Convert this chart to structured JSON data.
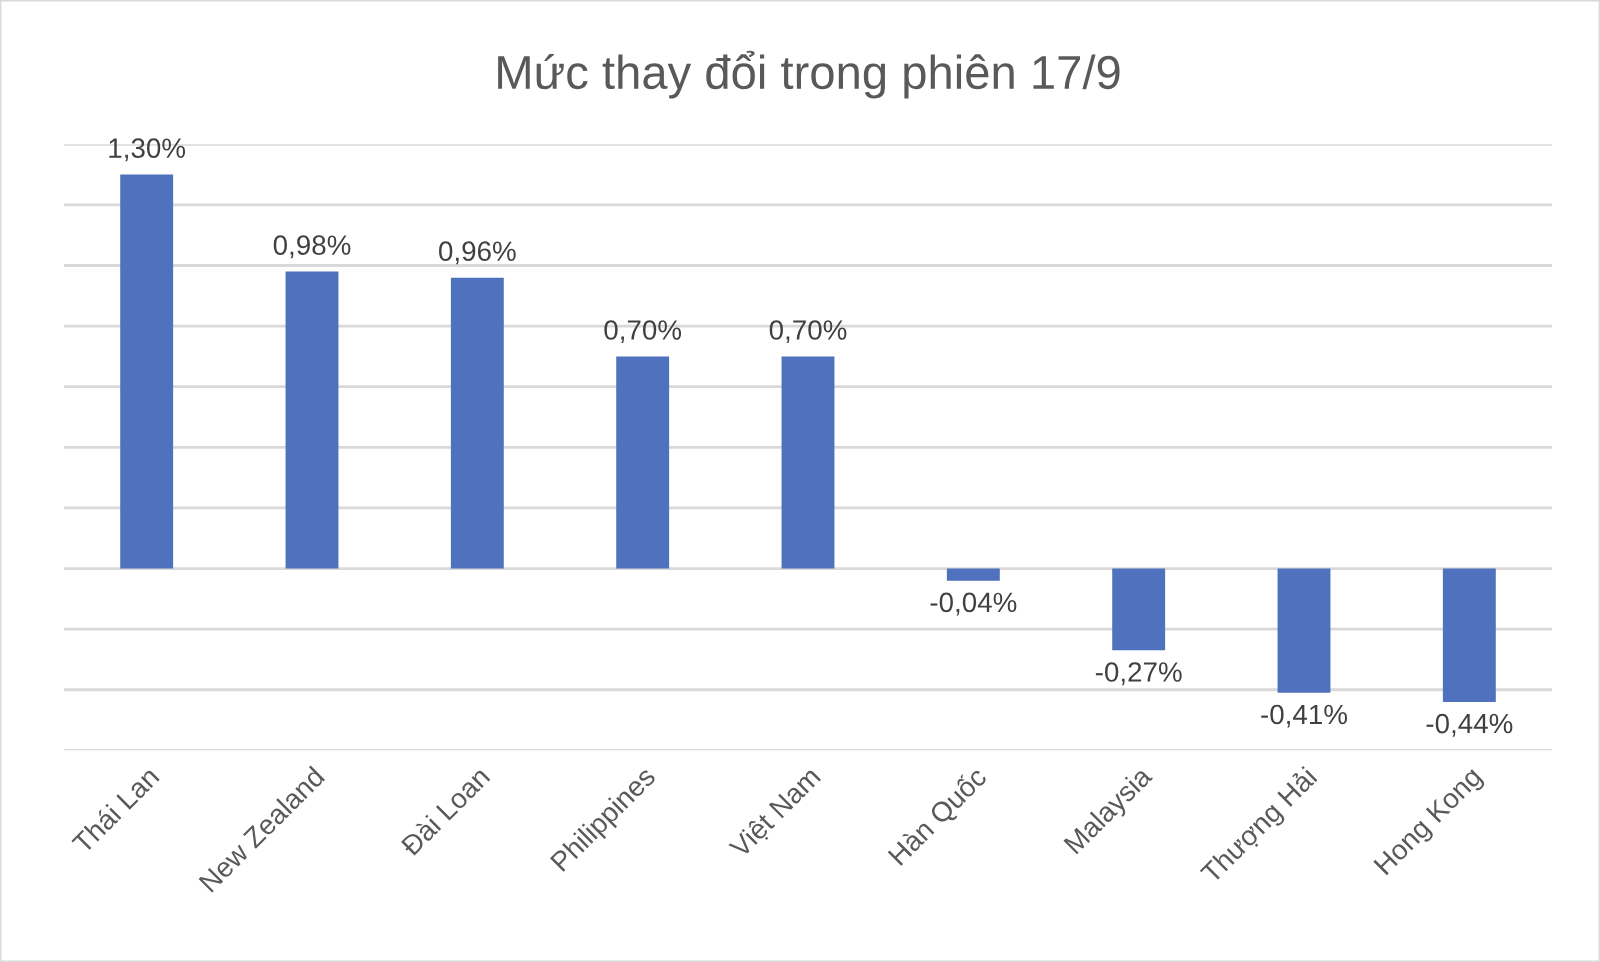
{
  "chart_data": {
    "type": "bar",
    "title": "Mức thay đổi trong phiên 17/9",
    "categories": [
      "Thái Lan",
      "New Zealand",
      "Đài Loan",
      "Philippines",
      "Việt Nam",
      "Hàn Quốc",
      "Malaysia",
      "Thượng Hải",
      "Hong Kong"
    ],
    "values": [
      1.3,
      0.98,
      0.96,
      0.7,
      0.7,
      -0.04,
      -0.27,
      -0.41,
      -0.44
    ],
    "value_labels": [
      "1,30%",
      "0,98%",
      "0,96%",
      "0,70%",
      "0,70%",
      "-0,04%",
      "-0,27%",
      "-0,41%",
      "-0,44%"
    ],
    "color": "#4f71be",
    "ylim": [
      -0.6,
      1.4
    ],
    "yticks": [
      {
        "value": -0.6,
        "label": null
      },
      {
        "value": -0.4,
        "label": null
      },
      {
        "value": -0.2,
        "label": null
      },
      {
        "value": 0,
        "label": null
      },
      {
        "value": 0.2,
        "label": null
      },
      {
        "value": 0.4,
        "label": null
      },
      {
        "value": 0.6,
        "label": null
      },
      {
        "value": 0.8,
        "label": null
      },
      {
        "value": 1.0,
        "label": null
      },
      {
        "value": 1.2,
        "label": null
      },
      {
        "value": 1.4,
        "label": null
      }
    ],
    "tick_labels": "x",
    "grid": "y"
  }
}
